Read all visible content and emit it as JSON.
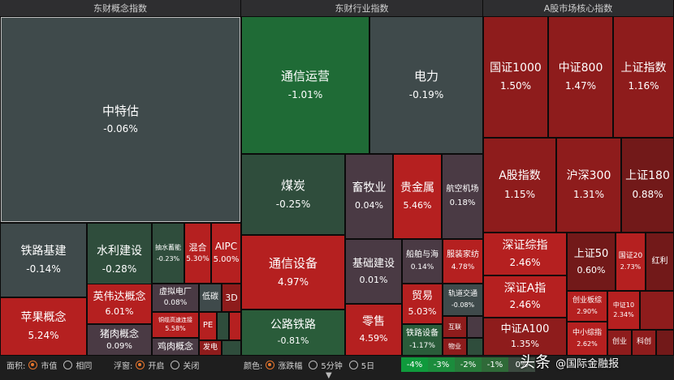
{
  "panels": {
    "concept": "东财概念指数",
    "industry": "东财行业指数",
    "core": "A股市场核心指数"
  },
  "tiles": {
    "zhongtegu": {
      "name": "中特估",
      "pct": "-0.06%"
    },
    "tielujijian": {
      "name": "铁路基建",
      "pct": "-0.14%"
    },
    "shuilijianshe": {
      "name": "水利建设",
      "pct": "-0.28%"
    },
    "choushuixuneng": {
      "name": "抽水蓄能",
      "pct": "-0.23%"
    },
    "hunhe": {
      "name": "混合",
      "pct": "5.30%"
    },
    "aipc": {
      "name": "AIPC",
      "pct": "5.00%"
    },
    "pingguo": {
      "name": "苹果概念",
      "pct": "5.24%"
    },
    "yingweida": {
      "name": "英伟达概念",
      "pct": "6.01%"
    },
    "xunidianchang": {
      "name": "虚拟电厂",
      "pct": "0.08%"
    },
    "ditan": {
      "name": "低碳"
    },
    "threed": {
      "name": "3D"
    },
    "zhurou": {
      "name": "猪肉概念",
      "pct": "0.09%"
    },
    "tonglan": {
      "name": "铜缆高速连接",
      "pct": "5.58%"
    },
    "pe": {
      "name": "PE"
    },
    "jirou": {
      "name": "鸡肉概念"
    },
    "fadian": {
      "name": "发电"
    },
    "tongxinyunying": {
      "name": "通信运营",
      "pct": "-1.01%"
    },
    "dianli": {
      "name": "电力",
      "pct": "-0.19%"
    },
    "meitan": {
      "name": "煤炭",
      "pct": "-0.25%"
    },
    "xumuye": {
      "name": "畜牧业",
      "pct": "0.04%"
    },
    "guijinshu": {
      "name": "贵金属",
      "pct": "5.46%"
    },
    "hangkong": {
      "name": "航空机场",
      "pct": "0.18%"
    },
    "tongxinshebei": {
      "name": "通信设备",
      "pct": "4.97%"
    },
    "jichujianshe": {
      "name": "基础建设",
      "pct": "0.01%"
    },
    "chuanbo": {
      "name": "船舶与海",
      "pct": "0.14%"
    },
    "fuzhuang": {
      "name": "服装家纺",
      "pct": "4.78%"
    },
    "maoyi": {
      "name": "贸易",
      "pct": "5.03%"
    },
    "guidao": {
      "name": "轨道交通",
      "pct": "-0.08%"
    },
    "gonglutielu": {
      "name": "公路铁路",
      "pct": "-0.81%"
    },
    "lingshou": {
      "name": "零售",
      "pct": "4.59%"
    },
    "tielushebei": {
      "name": "铁路设备",
      "pct": "-1.17%"
    },
    "hulian": {
      "name": "互联"
    },
    "wuzhu": {
      "name": "物业"
    },
    "guozheng1000": {
      "name": "国证1000",
      "pct": "1.50%"
    },
    "zhongzheng800": {
      "name": "中证800",
      "pct": "1.47%"
    },
    "shangzheng": {
      "name": "上证指数",
      "pct": "1.16%"
    },
    "agu": {
      "name": "A股指数",
      "pct": "1.15%"
    },
    "husheng300": {
      "name": "沪深300",
      "pct": "1.31%"
    },
    "shangzheng180": {
      "name": "上证180",
      "pct": "0.88%"
    },
    "shenzhengzongzhi": {
      "name": "深证综指",
      "pct": "2.46%"
    },
    "shangzheng50": {
      "name": "上证50",
      "pct": "0.60%"
    },
    "guozheng20": {
      "name": "国证20",
      "pct": "2.73%"
    },
    "hongli": {
      "name": "红利"
    },
    "shenzhenga": {
      "name": "深证A指",
      "pct": "2.46%"
    },
    "chuangyeban": {
      "name": "创业板综",
      "pct": "2.90%"
    },
    "zhongzheng10": {
      "name": "中证10",
      "pct": "2.34%"
    },
    "zhongzhenga100": {
      "name": "中证A100",
      "pct": "1.35%"
    },
    "zhongxiao": {
      "name": "中小综指",
      "pct": "2.62%"
    },
    "chuangye": {
      "name": "创业"
    },
    "keji": {
      "name": "科创"
    }
  },
  "controls": {
    "area_label": "面积:",
    "area_opt1": "市值",
    "area_opt2": "相同",
    "float_label": "浮窗:",
    "float_opt1": "开启",
    "float_opt2": "关闭",
    "color_label": "颜色:",
    "color_opt1": "涨跌幅",
    "color_opt2": "5分钟",
    "color_opt3": "5日"
  },
  "legend": [
    "-4%",
    "-3%",
    "-2%",
    "-1%",
    "0%"
  ],
  "legend_colors": [
    "#0f9a3c",
    "#1b8c3c",
    "#277a3a",
    "#2f6a38",
    "#3c4a40"
  ],
  "watermark": {
    "prefix": "头条",
    "text": "@国际金融报"
  }
}
